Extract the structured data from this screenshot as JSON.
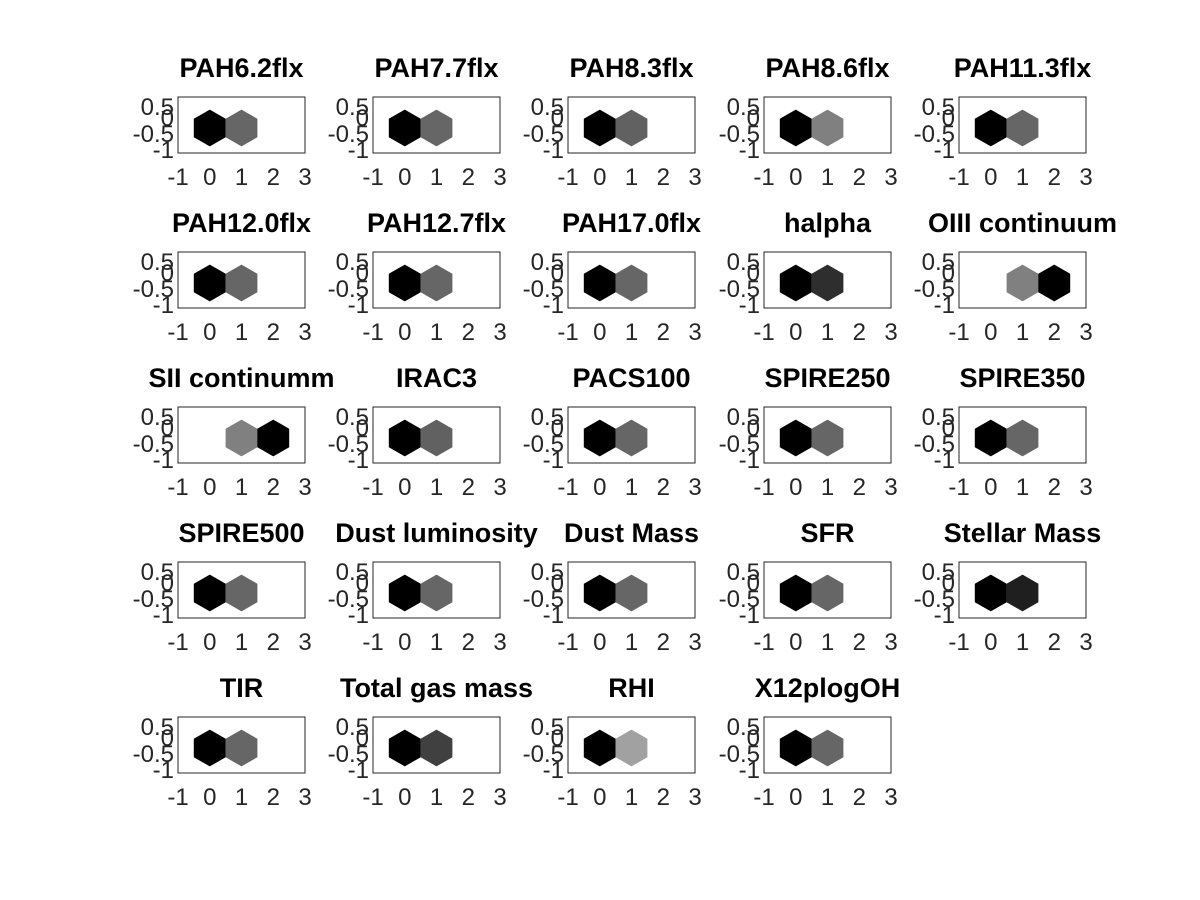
{
  "chart_data": [
    {
      "type": "heatmap",
      "title": "PAH6.2flx",
      "hexes": [
        {
          "x": 0,
          "y": 0,
          "shade": 0.0
        },
        {
          "x": 1,
          "y": 0,
          "shade": 0.4
        }
      ],
      "xticks": [
        "-1",
        "0",
        "1",
        "2",
        "3"
      ],
      "yticks": [
        "0.5",
        "0",
        "-0.5",
        "-1"
      ],
      "xlim": [
        -1,
        3
      ],
      "ylim": [
        -1,
        1
      ]
    },
    {
      "type": "heatmap",
      "title": "PAH7.7flx",
      "hexes": [
        {
          "x": 0,
          "y": 0,
          "shade": 0.0
        },
        {
          "x": 1,
          "y": 0,
          "shade": 0.4
        }
      ],
      "xticks": [
        "-1",
        "0",
        "1",
        "2",
        "3"
      ],
      "yticks": [
        "0.5",
        "0",
        "-0.5",
        "-1"
      ],
      "xlim": [
        -1,
        3
      ],
      "ylim": [
        -1,
        1
      ]
    },
    {
      "type": "heatmap",
      "title": "PAH8.3flx",
      "hexes": [
        {
          "x": 0,
          "y": 0,
          "shade": 0.0
        },
        {
          "x": 1,
          "y": 0,
          "shade": 0.38
        }
      ],
      "xticks": [
        "-1",
        "0",
        "1",
        "2",
        "3"
      ],
      "yticks": [
        "0.5",
        "0",
        "-0.5",
        "-1"
      ],
      "xlim": [
        -1,
        3
      ],
      "ylim": [
        -1,
        1
      ]
    },
    {
      "type": "heatmap",
      "title": "PAH8.6flx",
      "hexes": [
        {
          "x": 0,
          "y": 0,
          "shade": 0.0
        },
        {
          "x": 1,
          "y": 0,
          "shade": 0.5
        }
      ],
      "xticks": [
        "-1",
        "0",
        "1",
        "2",
        "3"
      ],
      "yticks": [
        "0.5",
        "0",
        "-0.5",
        "-1"
      ],
      "xlim": [
        -1,
        3
      ],
      "ylim": [
        -1,
        1
      ]
    },
    {
      "type": "heatmap",
      "title": "PAH11.3flx",
      "hexes": [
        {
          "x": 0,
          "y": 0,
          "shade": 0.0
        },
        {
          "x": 1,
          "y": 0,
          "shade": 0.4
        }
      ],
      "xticks": [
        "-1",
        "0",
        "1",
        "2",
        "3"
      ],
      "yticks": [
        "0.5",
        "0",
        "-0.5",
        "-1"
      ],
      "xlim": [
        -1,
        3
      ],
      "ylim": [
        -1,
        1
      ]
    },
    {
      "type": "heatmap",
      "title": "PAH12.0flx",
      "hexes": [
        {
          "x": 0,
          "y": 0,
          "shade": 0.0
        },
        {
          "x": 1,
          "y": 0,
          "shade": 0.4
        }
      ],
      "xticks": [
        "-1",
        "0",
        "1",
        "2",
        "3"
      ],
      "yticks": [
        "0.5",
        "0",
        "-0.5",
        "-1"
      ],
      "xlim": [
        -1,
        3
      ],
      "ylim": [
        -1,
        1
      ]
    },
    {
      "type": "heatmap",
      "title": "PAH12.7flx",
      "hexes": [
        {
          "x": 0,
          "y": 0,
          "shade": 0.0
        },
        {
          "x": 1,
          "y": 0,
          "shade": 0.4
        }
      ],
      "xticks": [
        "-1",
        "0",
        "1",
        "2",
        "3"
      ],
      "yticks": [
        "0.5",
        "0",
        "-0.5",
        "-1"
      ],
      "xlim": [
        -1,
        3
      ],
      "ylim": [
        -1,
        1
      ]
    },
    {
      "type": "heatmap",
      "title": "PAH17.0flx",
      "hexes": [
        {
          "x": 0,
          "y": 0,
          "shade": 0.0
        },
        {
          "x": 1,
          "y": 0,
          "shade": 0.4
        }
      ],
      "xticks": [
        "-1",
        "0",
        "1",
        "2",
        "3"
      ],
      "yticks": [
        "0.5",
        "0",
        "-0.5",
        "-1"
      ],
      "xlim": [
        -1,
        3
      ],
      "ylim": [
        -1,
        1
      ]
    },
    {
      "type": "heatmap",
      "title": "halpha",
      "hexes": [
        {
          "x": 0,
          "y": 0,
          "shade": 0.0
        },
        {
          "x": 1,
          "y": 0,
          "shade": 0.18
        }
      ],
      "xticks": [
        "-1",
        "0",
        "1",
        "2",
        "3"
      ],
      "yticks": [
        "0.5",
        "0",
        "-0.5",
        "-1"
      ],
      "xlim": [
        -1,
        3
      ],
      "ylim": [
        -1,
        1
      ]
    },
    {
      "type": "heatmap",
      "title": "OIII continuum",
      "hexes": [
        {
          "x": 1,
          "y": 0,
          "shade": 0.5
        },
        {
          "x": 2,
          "y": 0,
          "shade": 0.0
        }
      ],
      "xticks": [
        "-1",
        "0",
        "1",
        "2",
        "3"
      ],
      "yticks": [
        "0.5",
        "0",
        "-0.5",
        "-1"
      ],
      "xlim": [
        -1,
        3
      ],
      "ylim": [
        -1,
        1
      ]
    },
    {
      "type": "heatmap",
      "title": "SII continumm",
      "hexes": [
        {
          "x": 1,
          "y": 0,
          "shade": 0.5
        },
        {
          "x": 2,
          "y": 0,
          "shade": 0.0
        }
      ],
      "xticks": [
        "-1",
        "0",
        "1",
        "2",
        "3"
      ],
      "yticks": [
        "0.5",
        "0",
        "-0.5",
        "-1"
      ],
      "xlim": [
        -1,
        3
      ],
      "ylim": [
        -1,
        1
      ]
    },
    {
      "type": "heatmap",
      "title": "IRAC3",
      "hexes": [
        {
          "x": 0,
          "y": 0,
          "shade": 0.0
        },
        {
          "x": 1,
          "y": 0,
          "shade": 0.38
        }
      ],
      "xticks": [
        "-1",
        "0",
        "1",
        "2",
        "3"
      ],
      "yticks": [
        "0.5",
        "0",
        "-0.5",
        "-1"
      ],
      "xlim": [
        -1,
        3
      ],
      "ylim": [
        -1,
        1
      ]
    },
    {
      "type": "heatmap",
      "title": "PACS100",
      "hexes": [
        {
          "x": 0,
          "y": 0,
          "shade": 0.0
        },
        {
          "x": 1,
          "y": 0,
          "shade": 0.4
        }
      ],
      "xticks": [
        "-1",
        "0",
        "1",
        "2",
        "3"
      ],
      "yticks": [
        "0.5",
        "0",
        "-0.5",
        "-1"
      ],
      "xlim": [
        -1,
        3
      ],
      "ylim": [
        -1,
        1
      ]
    },
    {
      "type": "heatmap",
      "title": "SPIRE250",
      "hexes": [
        {
          "x": 0,
          "y": 0,
          "shade": 0.0
        },
        {
          "x": 1,
          "y": 0,
          "shade": 0.4
        }
      ],
      "xticks": [
        "-1",
        "0",
        "1",
        "2",
        "3"
      ],
      "yticks": [
        "0.5",
        "0",
        "-0.5",
        "-1"
      ],
      "xlim": [
        -1,
        3
      ],
      "ylim": [
        -1,
        1
      ]
    },
    {
      "type": "heatmap",
      "title": "SPIRE350",
      "hexes": [
        {
          "x": 0,
          "y": 0,
          "shade": 0.0
        },
        {
          "x": 1,
          "y": 0,
          "shade": 0.4
        }
      ],
      "xticks": [
        "-1",
        "0",
        "1",
        "2",
        "3"
      ],
      "yticks": [
        "0.5",
        "0",
        "-0.5",
        "-1"
      ],
      "xlim": [
        -1,
        3
      ],
      "ylim": [
        -1,
        1
      ]
    },
    {
      "type": "heatmap",
      "title": "SPIRE500",
      "hexes": [
        {
          "x": 0,
          "y": 0,
          "shade": 0.0
        },
        {
          "x": 1,
          "y": 0,
          "shade": 0.4
        }
      ],
      "xticks": [
        "-1",
        "0",
        "1",
        "2",
        "3"
      ],
      "yticks": [
        "0.5",
        "0",
        "-0.5",
        "-1"
      ],
      "xlim": [
        -1,
        3
      ],
      "ylim": [
        -1,
        1
      ]
    },
    {
      "type": "heatmap",
      "title": "Dust luminosity",
      "hexes": [
        {
          "x": 0,
          "y": 0,
          "shade": 0.0
        },
        {
          "x": 1,
          "y": 0,
          "shade": 0.4
        }
      ],
      "xticks": [
        "-1",
        "0",
        "1",
        "2",
        "3"
      ],
      "yticks": [
        "0.5",
        "0",
        "-0.5",
        "-1"
      ],
      "xlim": [
        -1,
        3
      ],
      "ylim": [
        -1,
        1
      ]
    },
    {
      "type": "heatmap",
      "title": "Dust Mass",
      "hexes": [
        {
          "x": 0,
          "y": 0,
          "shade": 0.0
        },
        {
          "x": 1,
          "y": 0,
          "shade": 0.4
        }
      ],
      "xticks": [
        "-1",
        "0",
        "1",
        "2",
        "3"
      ],
      "yticks": [
        "0.5",
        "0",
        "-0.5",
        "-1"
      ],
      "xlim": [
        -1,
        3
      ],
      "ylim": [
        -1,
        1
      ]
    },
    {
      "type": "heatmap",
      "title": "SFR",
      "hexes": [
        {
          "x": 0,
          "y": 0,
          "shade": 0.0
        },
        {
          "x": 1,
          "y": 0,
          "shade": 0.4
        }
      ],
      "xticks": [
        "-1",
        "0",
        "1",
        "2",
        "3"
      ],
      "yticks": [
        "0.5",
        "0",
        "-0.5",
        "-1"
      ],
      "xlim": [
        -1,
        3
      ],
      "ylim": [
        -1,
        1
      ]
    },
    {
      "type": "heatmap",
      "title": "Stellar Mass",
      "hexes": [
        {
          "x": 0,
          "y": 0,
          "shade": 0.0
        },
        {
          "x": 1,
          "y": 0,
          "shade": 0.12
        }
      ],
      "xticks": [
        "-1",
        "0",
        "1",
        "2",
        "3"
      ],
      "yticks": [
        "0.5",
        "0",
        "-0.5",
        "-1"
      ],
      "xlim": [
        -1,
        3
      ],
      "ylim": [
        -1,
        1
      ]
    },
    {
      "type": "heatmap",
      "title": "TIR",
      "hexes": [
        {
          "x": 0,
          "y": 0,
          "shade": 0.0
        },
        {
          "x": 1,
          "y": 0,
          "shade": 0.4
        }
      ],
      "xticks": [
        "-1",
        "0",
        "1",
        "2",
        "3"
      ],
      "yticks": [
        "0.5",
        "0",
        "-0.5",
        "-1"
      ],
      "xlim": [
        -1,
        3
      ],
      "ylim": [
        -1,
        1
      ]
    },
    {
      "type": "heatmap",
      "title": "Total gas mass",
      "hexes": [
        {
          "x": 0,
          "y": 0,
          "shade": 0.0
        },
        {
          "x": 1,
          "y": 0,
          "shade": 0.25
        }
      ],
      "xticks": [
        "-1",
        "0",
        "1",
        "2",
        "3"
      ],
      "yticks": [
        "0.5",
        "0",
        "-0.5",
        "-1"
      ],
      "xlim": [
        -1,
        3
      ],
      "ylim": [
        -1,
        1
      ]
    },
    {
      "type": "heatmap",
      "title": "RHI",
      "hexes": [
        {
          "x": 0,
          "y": 0,
          "shade": 0.0
        },
        {
          "x": 1,
          "y": 0,
          "shade": 0.63
        }
      ],
      "xticks": [
        "-1",
        "0",
        "1",
        "2",
        "3"
      ],
      "yticks": [
        "0.5",
        "0",
        "-0.5",
        "-1"
      ],
      "xlim": [
        -1,
        3
      ],
      "ylim": [
        -1,
        1
      ]
    },
    {
      "type": "heatmap",
      "title": "X12plogOH",
      "hexes": [
        {
          "x": 0,
          "y": 0,
          "shade": 0.0
        },
        {
          "x": 1,
          "y": 0,
          "shade": 0.4
        }
      ],
      "xticks": [
        "-1",
        "0",
        "1",
        "2",
        "3"
      ],
      "yticks": [
        "0.5",
        "0",
        "-0.5",
        "-1"
      ],
      "xlim": [
        -1,
        3
      ],
      "ylim": [
        -1,
        1
      ]
    }
  ],
  "colors": {
    "background": "#ffffff",
    "axis": "#262626",
    "title": "#000000"
  }
}
